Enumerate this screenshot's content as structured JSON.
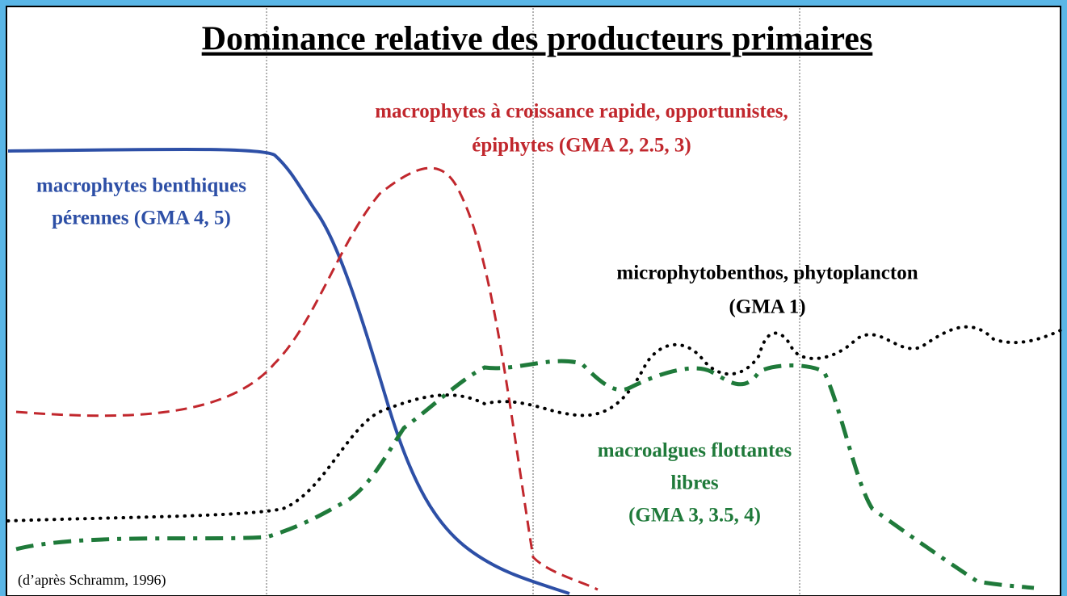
{
  "title": "Dominance relative des producteurs primaires",
  "labels": {
    "red": [
      "macrophytes à croissance rapide, opportunistes,",
      "épiphytes (GMA 2, 2.5, 3)"
    ],
    "blue": [
      "macrophytes benthiques",
      "pérennes (GMA 4, 5)"
    ],
    "black": [
      "microphytobenthos, phytoplancton",
      "(GMA 1)"
    ],
    "green": [
      "macroalgues flottantes",
      "libres",
      "(GMA 3, 3.5, 4)"
    ]
  },
  "source": "(d’après Schramm, 1996)"
}
